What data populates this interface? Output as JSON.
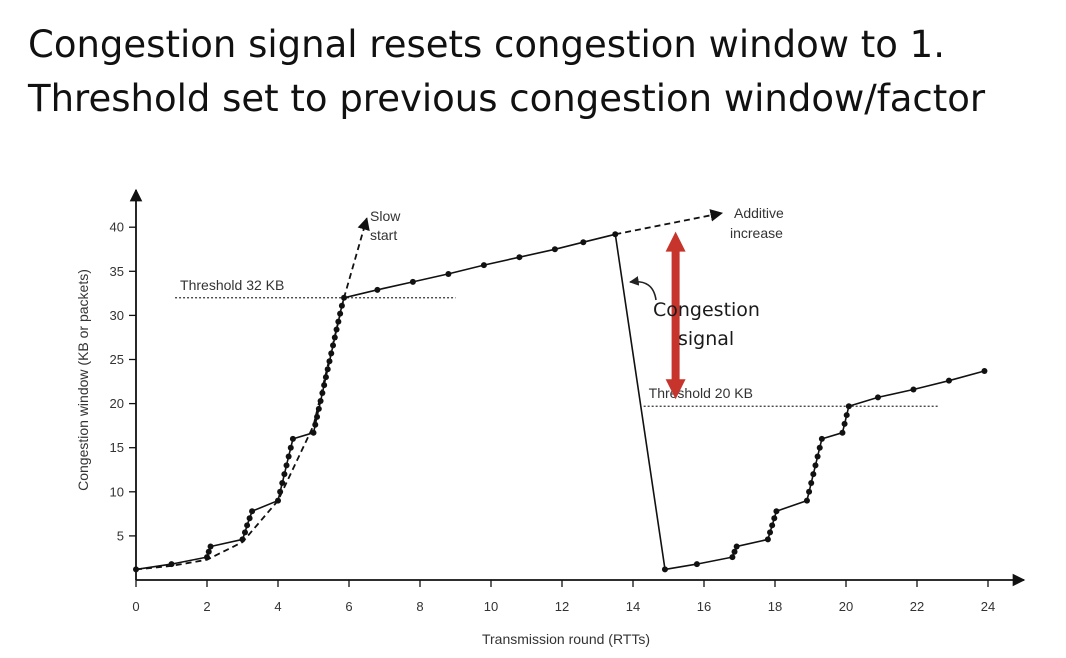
{
  "slide": {
    "title_line1": "Congestion signal resets congestion window to 1.",
    "title_line2": "Threshold set to previous congestion window/factor"
  },
  "chart_data": {
    "type": "line",
    "xlabel": "Transmission round (RTTs)",
    "ylabel": "Congestion window  (KB or packets)",
    "xlim": [
      0,
      25
    ],
    "ylim": [
      0,
      42
    ],
    "xticks": [
      0,
      2,
      4,
      6,
      8,
      10,
      12,
      14,
      16,
      18,
      20,
      22,
      24
    ],
    "yticks": [
      5,
      10,
      15,
      20,
      25,
      30,
      35,
      40
    ],
    "grid": false,
    "series": [
      {
        "style": "solid-with-dots",
        "points": [
          [
            0,
            1.2
          ],
          [
            1,
            1.8
          ],
          [
            2,
            2.6
          ],
          [
            2.05,
            3.2
          ],
          [
            2.1,
            3.8
          ],
          [
            3,
            4.6
          ],
          [
            3.07,
            5.4
          ],
          [
            3.13,
            6.2
          ],
          [
            3.2,
            7.0
          ],
          [
            3.27,
            7.8
          ],
          [
            4,
            9.0
          ],
          [
            4.06,
            10.0
          ],
          [
            4.12,
            11.0
          ],
          [
            4.18,
            12.0
          ],
          [
            4.24,
            13.0
          ],
          [
            4.3,
            14.0
          ],
          [
            4.36,
            15.0
          ],
          [
            4.42,
            16.0
          ],
          [
            5,
            16.7
          ],
          [
            5.05,
            17.6
          ],
          [
            5.1,
            18.5
          ],
          [
            5.15,
            19.4
          ],
          [
            5.2,
            20.3
          ],
          [
            5.25,
            21.2
          ],
          [
            5.3,
            22.1
          ],
          [
            5.35,
            23.0
          ],
          [
            5.4,
            23.9
          ],
          [
            5.45,
            24.8
          ],
          [
            5.5,
            25.7
          ],
          [
            5.55,
            26.6
          ],
          [
            5.6,
            27.5
          ],
          [
            5.65,
            28.4
          ],
          [
            5.7,
            29.3
          ],
          [
            5.75,
            30.2
          ],
          [
            5.8,
            31.1
          ],
          [
            5.86,
            32.0
          ],
          [
            6.8,
            32.9
          ],
          [
            7.8,
            33.8
          ],
          [
            8.8,
            34.7
          ],
          [
            9.8,
            35.7
          ],
          [
            10.8,
            36.6
          ],
          [
            11.8,
            37.5
          ],
          [
            12.6,
            38.3
          ],
          [
            13.5,
            39.2
          ],
          [
            14.9,
            1.2
          ],
          [
            15.8,
            1.8
          ],
          [
            16.8,
            2.6
          ],
          [
            16.86,
            3.2
          ],
          [
            16.92,
            3.8
          ],
          [
            17.8,
            4.6
          ],
          [
            17.86,
            5.4
          ],
          [
            17.92,
            6.2
          ],
          [
            17.98,
            7.0
          ],
          [
            18.04,
            7.8
          ],
          [
            18.9,
            9.0
          ],
          [
            18.96,
            10.0
          ],
          [
            19.02,
            11.0
          ],
          [
            19.08,
            12.0
          ],
          [
            19.14,
            13.0
          ],
          [
            19.2,
            14.0
          ],
          [
            19.26,
            15.0
          ],
          [
            19.32,
            16.0
          ],
          [
            19.9,
            16.7
          ],
          [
            19.96,
            17.7
          ],
          [
            20.02,
            18.7
          ],
          [
            20.08,
            19.7
          ],
          [
            20.9,
            20.7
          ],
          [
            21.9,
            21.6
          ],
          [
            22.9,
            22.6
          ],
          [
            23.9,
            23.7
          ]
        ]
      },
      {
        "style": "dashed",
        "points": [
          [
            0,
            1.2
          ],
          [
            1,
            1.6
          ],
          [
            2,
            2.3
          ],
          [
            3,
            4.3
          ],
          [
            4,
            9.0
          ],
          [
            5,
            17.5
          ],
          [
            5.86,
            32.0
          ],
          [
            6.5,
            41.0
          ]
        ]
      },
      {
        "style": "dashed",
        "points": [
          [
            13.5,
            39.2
          ],
          [
            16.5,
            41.6
          ]
        ]
      }
    ],
    "threshold_lines": [
      {
        "label": "Threshold 32 KB",
        "y": 32,
        "x_from": 1.1,
        "x_to": 9.0
      },
      {
        "label": "Threshold 20 KB",
        "y": 19.7,
        "x_from": 14.3,
        "x_to": 22.6
      }
    ],
    "annotations": {
      "slow_start_line1": "Slow",
      "slow_start_line2": "start",
      "additive_line1": "Additive",
      "additive_line2": "increase",
      "signal_line1": "Congestion",
      "signal_line2": "signal"
    },
    "signal_arrow": {
      "x": 15.2,
      "y_from": 20.5,
      "y_to": 39.5,
      "color": "#c6342b"
    }
  }
}
